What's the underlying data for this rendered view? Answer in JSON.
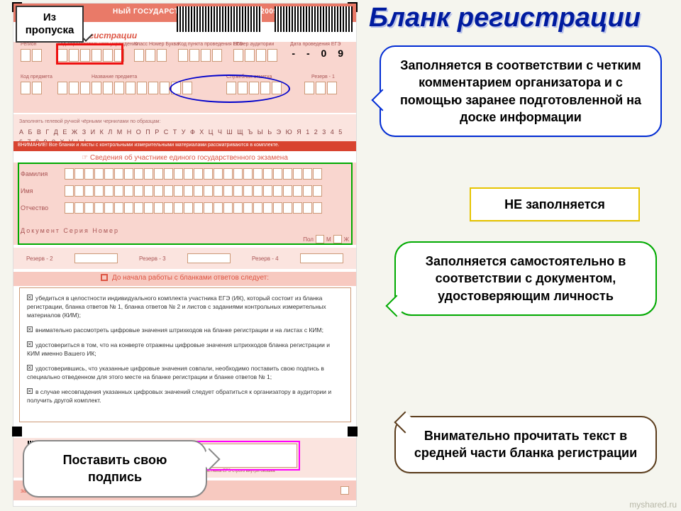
{
  "title": "Бланк регистрации",
  "pass_label": "Из пропуска",
  "form": {
    "header": "НЫЙ ГОСУДАРСТВЕННЫЙ ЭКЗАМЕН - 2009",
    "header_sub1": "нк",
    "header_sub2": "егистрации",
    "dash": "- - 0 9",
    "row1_labels": [
      "Регион",
      "Код образовательного учреждения",
      "Класс Номер Буква",
      "Код пункта проведения ЕГЭ",
      "Номер аудитории",
      "Дата проведения ЕГЭ"
    ],
    "row2_labels": [
      "Код предмета",
      "Название предмета",
      "Служебная отметка",
      "Резерв - 1"
    ],
    "alpha_hint": "Заполнять гелевой ручкой чёрными чернилами по образцам:",
    "alpha_letters": "А Б В Г Д Е Ж З И К Л М Н О П Р С Т У Ф Х Ц Ч Ш Щ Ъ Ы Ь Э Ю Я  1 2 3 4 5 6 7 8 9 0 X V I L -",
    "warn": "ВНИМАНИЕ! Все бланки и листы с контрольными измерительными материалами рассматриваются в комплекте.",
    "section_title": "Сведения об участнике единого государственного экзамена",
    "name_rows": [
      "Фамилия",
      "Имя",
      "Отчество"
    ],
    "doc_row": "Документ        Серия                                 Номер",
    "pol": "Пол",
    "reserve": [
      "Резерв - 2",
      "Резерв - 3",
      "Резерв - 4"
    ],
    "mid_header": "До начала работы с бланками ответов следует:",
    "bullets": [
      "убедиться в целостности индивидуального комплекта участника ЕГЭ (ИК), который состоит из бланка регистрации, бланка ответов № 1, бланка ответов № 2 и листов с заданиями контрольных измерительных материалов (КИМ);",
      "внимательно рассмотреть цифровые значения штрихкодов на бланке регистрации и на листах с КИМ;",
      "удостовериться в том, что на конверте отражены цифровые значения штрихкодов бланка регистрации и КИМ именно Вашего ИК;",
      "удостоверившись, что указанные цифровые значения совпали, необходимо поставить свою подпись в специально отведенном для этого месте на бланке регистрации и бланке ответов № 1;",
      "в случае несовпадения указанных цифровых значений следует обратиться к организатору в аудитории и получить другой комплект."
    ],
    "sig_label": "Подпись участника ЕГЭ строго внутри окошка",
    "bottom": "затором в аудитории"
  },
  "callouts": {
    "c1": "Заполняется в соответствии с четким комментарием организатора и с помощью заранее подготовленной на доске информации",
    "c2": "НЕ заполняется",
    "c3": "Заполняется самостоятельно в соответствии с документом, удостоверяющим личность",
    "c4": "Внимательно прочитать текст в средней части бланка регистрации",
    "c5": "Поставить свою подпись"
  },
  "watermark": "myshared.ru",
  "colors": {
    "title": "#001b9f",
    "c1_border": "#002bd4",
    "c2_border": "#e6c400",
    "c3_border": "#00aa00",
    "c4_border": "#5a3b1a",
    "c5_border": "#888888",
    "red_hi": "#ee1111",
    "green_hi": "#00aa00",
    "magenta_hi": "#ff00ff",
    "form_pink": "#f9d6cf",
    "background": "#f5f5ee"
  }
}
